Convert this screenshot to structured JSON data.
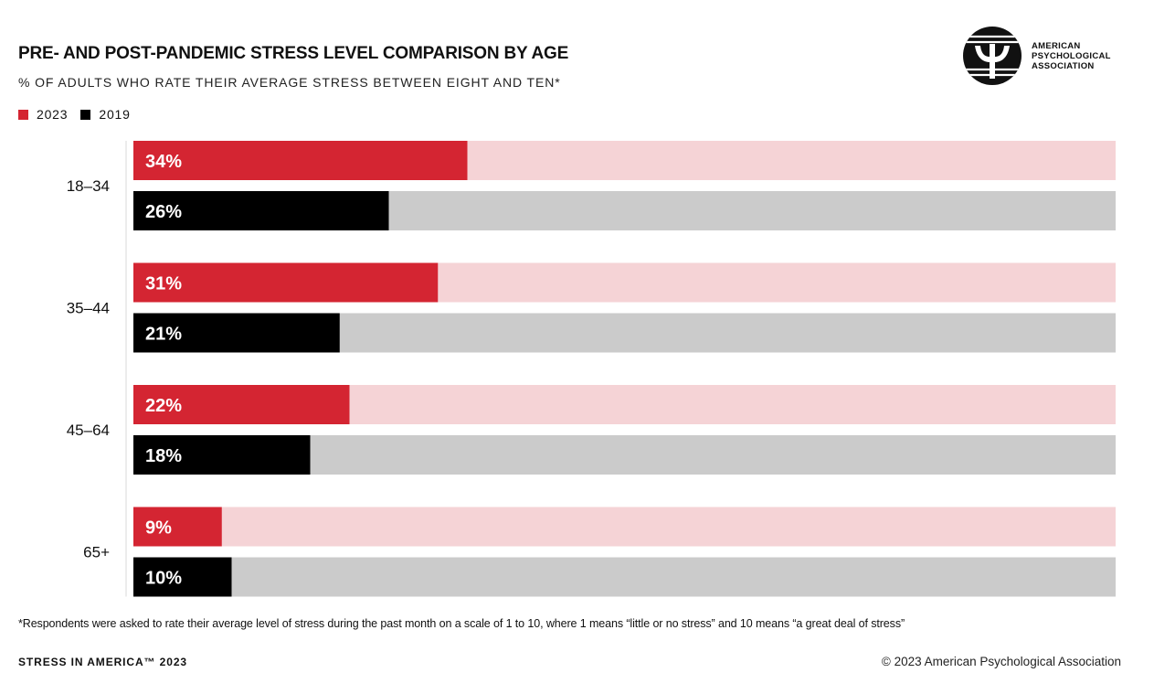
{
  "header": {
    "title": "PRE- AND POST-PANDEMIC STRESS LEVEL COMPARISON BY AGE",
    "subtitle": "% OF ADULTS WHO RATE THEIR AVERAGE STRESS BETWEEN EIGHT AND TEN*"
  },
  "logo": {
    "line1": "AMERICAN",
    "line2": "PSYCHOLOGICAL",
    "line3": "ASSOCIATION",
    "icon": "apa-psi-logo"
  },
  "chart_data": {
    "type": "bar",
    "orientation": "horizontal",
    "categories": [
      "18–34",
      "35–44",
      "45–64",
      "65+"
    ],
    "series": [
      {
        "name": "2023",
        "values": [
          34,
          31,
          22,
          9
        ],
        "labels": [
          "34%",
          "31%",
          "22%",
          "9%"
        ],
        "color": "#d42532",
        "track_color": "#f5d3d6"
      },
      {
        "name": "2019",
        "values": [
          26,
          21,
          18,
          10
        ],
        "labels": [
          "26%",
          "21%",
          "18%",
          "10%"
        ],
        "color": "#000000",
        "track_color": "#cbcbcb"
      }
    ],
    "xlim": [
      0,
      100
    ],
    "legend_position": "top-left",
    "grid": false
  },
  "footnote": "*Respondents were asked to rate their average level of stress during the past month on a scale of 1 to 10, where 1 means “little or no stress” and 10 means “a great deal of stress”",
  "footer": {
    "left": "STRESS IN AMERICA™ 2023",
    "right": "© 2023 American Psychological Association"
  }
}
